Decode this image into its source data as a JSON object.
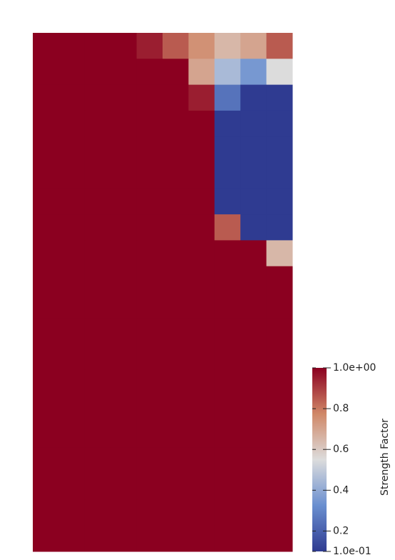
{
  "chart_data": {
    "type": "heatmap",
    "colorbar_title": "Strength Factor",
    "zlim": [
      0.1,
      1
    ],
    "zticks": [
      {
        "value": 1,
        "label": "1.0e+00"
      },
      0.8,
      0.6,
      0.4,
      0.2,
      {
        "value": 0.1,
        "label": "1.0e-01"
      }
    ],
    "colorscale": [
      {
        "value": 0.1,
        "color": "#2f3b91"
      },
      {
        "value": 0.325,
        "color": "#6a8fd0"
      },
      {
        "value": 0.55,
        "color": "#dcdcdc"
      },
      {
        "value": 0.775,
        "color": "#d08868"
      },
      {
        "value": 1,
        "color": "#8b0020"
      }
    ],
    "z": [
      [
        1,
        1,
        1,
        1,
        0.95,
        0.85,
        0.75,
        0.65,
        0.7,
        0.85
      ],
      [
        1,
        1,
        1,
        1,
        1,
        1,
        0.7,
        0.45,
        0.35,
        0.55
      ],
      [
        1,
        1,
        1,
        1,
        1,
        1,
        0.95,
        0.25,
        0.1,
        0.1
      ],
      [
        1,
        1,
        1,
        1,
        1,
        1,
        1,
        0.1,
        0.1,
        0.1
      ],
      [
        1,
        1,
        1,
        1,
        1,
        1,
        1,
        0.1,
        0.1,
        0.1
      ],
      [
        1,
        1,
        1,
        1,
        1,
        1,
        1,
        0.1,
        0.1,
        0.1
      ],
      [
        1,
        1,
        1,
        1,
        1,
        1,
        1,
        0.1,
        0.1,
        0.1
      ],
      [
        1,
        1,
        1,
        1,
        1,
        1,
        1,
        0.85,
        0.1,
        0.1
      ],
      [
        1,
        1,
        1,
        1,
        1,
        1,
        1,
        1,
        1,
        0.65
      ],
      [
        1,
        1,
        1,
        1,
        1,
        1,
        1,
        1,
        1,
        1
      ],
      [
        1,
        1,
        1,
        1,
        1,
        1,
        1,
        1,
        1,
        1
      ],
      [
        1,
        1,
        1,
        1,
        1,
        1,
        1,
        1,
        1,
        1
      ],
      [
        1,
        1,
        1,
        1,
        1,
        1,
        1,
        1,
        1,
        1
      ],
      [
        1,
        1,
        1,
        1,
        1,
        1,
        1,
        1,
        1,
        1
      ],
      [
        1,
        1,
        1,
        1,
        1,
        1,
        1,
        1,
        1,
        1
      ],
      [
        1,
        1,
        1,
        1,
        1,
        1,
        1,
        1,
        1,
        1
      ],
      [
        1,
        1,
        1,
        1,
        1,
        1,
        1,
        1,
        1,
        1
      ],
      [
        1,
        1,
        1,
        1,
        1,
        1,
        1,
        1,
        1,
        1
      ],
      [
        1,
        1,
        1,
        1,
        1,
        1,
        1,
        1,
        1,
        1
      ],
      [
        1,
        1,
        1,
        1,
        1,
        1,
        1,
        1,
        1,
        1
      ]
    ]
  }
}
